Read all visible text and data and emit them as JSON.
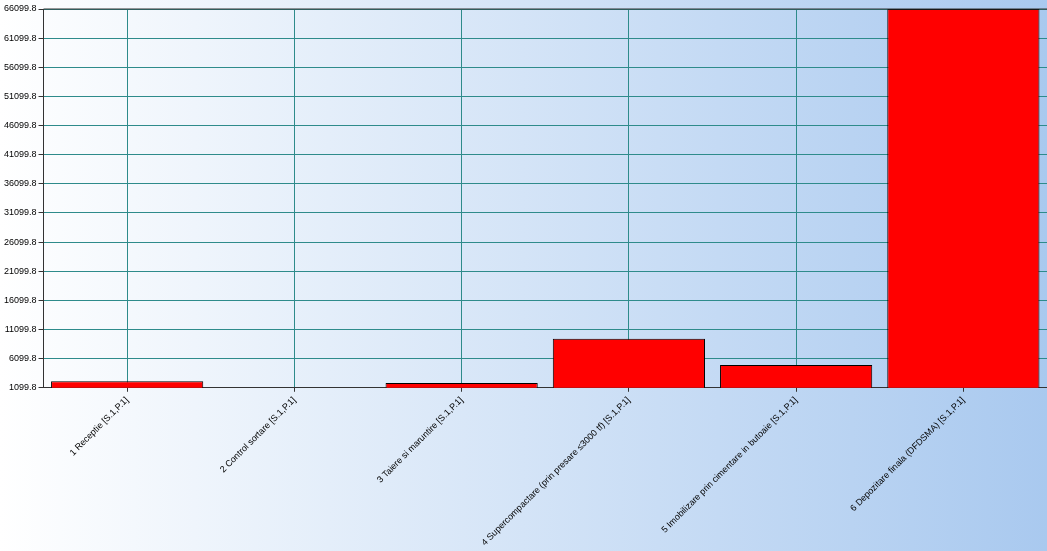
{
  "chart_data": {
    "type": "bar",
    "categories": [
      "1 Receptie [S.1,P.1]",
      "2 Control sortare [S.1,P.1]",
      "3 Taiere si maruntire [S.1,P.1]",
      "4 Supercompactare (prin presare ≤3000 tf) [S.1,P.1]",
      "5 Imobilizare prin cimentare in butoaie [S.1,P.1]",
      "6 Depozitare finala (DFDSMA) [S.1,P.1]"
    ],
    "values": [
      2200,
      1099.8,
      1900,
      9500,
      5000,
      66099.8
    ],
    "color": "#ff0000",
    "ylim": [
      1099.8,
      66099.8
    ],
    "yticks": [
      1099.8,
      6099.8,
      11099.8,
      16099.8,
      21099.8,
      26099.8,
      31099.8,
      36099.8,
      41099.8,
      46099.8,
      51099.8,
      56099.8,
      61099.8,
      66099.8
    ],
    "grid": true
  }
}
